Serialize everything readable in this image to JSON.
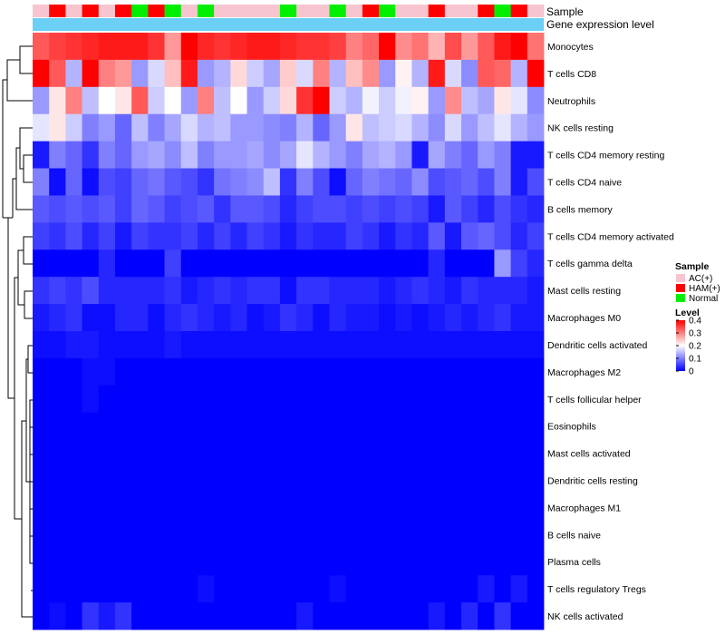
{
  "chart_data": {
    "type": "heatmap",
    "title": "",
    "annotation_tracks": [
      "Sample",
      "Gene expression level"
    ],
    "sample_groups": [
      "AC(+)",
      "HAM(+)",
      "AC(+)",
      "HAM(+)",
      "AC(+)",
      "HAM(+)",
      "Normal",
      "HAM(+)",
      "Normal",
      "AC(+)",
      "Normal",
      "AC(+)",
      "AC(+)",
      "AC(+)",
      "AC(+)",
      "Normal",
      "AC(+)",
      "AC(+)",
      "Normal",
      "AC(+)",
      "HAM(+)",
      "Normal",
      "AC(+)",
      "AC(+)",
      "HAM(+)",
      "AC(+)",
      "AC(+)",
      "HAM(+)",
      "Normal",
      "HAM(+)",
      "AC(+)"
    ],
    "rows": [
      "Monocytes",
      "T cells CD8",
      "Neutrophils",
      "NK cells resting",
      "T cells CD4 memory resting",
      "T cells CD4 naive",
      "B cells memory",
      "T cells CD4 memory activated",
      "T cells gamma delta",
      "Mast cells resting",
      "Macrophages M0",
      "Dendritic cells activated",
      "Macrophages M2",
      "T cells follicular helper",
      "Eosinophils",
      "Mast cells activated",
      "Dendritic cells resting",
      "Macrophages M1",
      "B cells naive",
      "Plasma cells",
      "T cells regulatory  Tregs",
      "NK cells activated"
    ],
    "values": [
      [
        0.33,
        0.35,
        0.36,
        0.37,
        0.38,
        0.38,
        0.38,
        0.36,
        0.28,
        0.4,
        0.37,
        0.36,
        0.37,
        0.38,
        0.38,
        0.37,
        0.36,
        0.36,
        0.35,
        0.3,
        0.32,
        0.4,
        0.29,
        0.31,
        0.26,
        0.34,
        0.28,
        0.33,
        0.38,
        0.4,
        0.31
      ],
      [
        0.4,
        0.33,
        0.14,
        0.4,
        0.3,
        0.28,
        0.12,
        0.17,
        0.25,
        0.38,
        0.12,
        0.14,
        0.23,
        0.16,
        0.13,
        0.24,
        0.17,
        0.3,
        0.14,
        0.25,
        0.29,
        0.12,
        0.21,
        0.14,
        0.38,
        0.17,
        0.11,
        0.33,
        0.32,
        0.14,
        0.4
      ],
      [
        0.12,
        0.22,
        0.3,
        0.15,
        0.2,
        0.22,
        0.33,
        0.16,
        0.2,
        0.12,
        0.3,
        0.15,
        0.2,
        0.12,
        0.16,
        0.23,
        0.36,
        0.4,
        0.16,
        0.14,
        0.19,
        0.16,
        0.19,
        0.21,
        0.12,
        0.29,
        0.15,
        0.13,
        0.22,
        0.18,
        0.11
      ],
      [
        0.18,
        0.22,
        0.16,
        0.1,
        0.12,
        0.08,
        0.15,
        0.1,
        0.13,
        0.17,
        0.14,
        0.15,
        0.12,
        0.12,
        0.11,
        0.1,
        0.14,
        0.08,
        0.12,
        0.22,
        0.15,
        0.16,
        0.17,
        0.14,
        0.11,
        0.17,
        0.12,
        0.15,
        0.18,
        0.14,
        0.12
      ],
      [
        0.02,
        0.1,
        0.08,
        0.04,
        0.1,
        0.08,
        0.12,
        0.13,
        0.11,
        0.15,
        0.1,
        0.12,
        0.12,
        0.13,
        0.11,
        0.13,
        0.18,
        0.14,
        0.12,
        0.1,
        0.13,
        0.14,
        0.12,
        0.02,
        0.13,
        0.1,
        0.08,
        0.12,
        0.1,
        0.02,
        0.02
      ],
      [
        0.1,
        0.01,
        0.08,
        0.01,
        0.06,
        0.05,
        0.08,
        0.09,
        0.07,
        0.06,
        0.04,
        0.09,
        0.1,
        0.11,
        0.15,
        0.04,
        0.1,
        0.06,
        0.01,
        0.08,
        0.1,
        0.09,
        0.08,
        0.11,
        0.06,
        0.07,
        0.08,
        0.06,
        0.1,
        0.02,
        0.06
      ],
      [
        0.07,
        0.06,
        0.07,
        0.06,
        0.07,
        0.05,
        0.08,
        0.07,
        0.05,
        0.06,
        0.07,
        0.04,
        0.07,
        0.07,
        0.06,
        0.03,
        0.05,
        0.06,
        0.06,
        0.05,
        0.06,
        0.05,
        0.06,
        0.05,
        0.02,
        0.07,
        0.05,
        0.03,
        0.06,
        0.04,
        0.03
      ],
      [
        0.05,
        0.04,
        0.06,
        0.03,
        0.05,
        0.02,
        0.05,
        0.04,
        0.04,
        0.05,
        0.03,
        0.05,
        0.03,
        0.05,
        0.04,
        0.02,
        0.04,
        0.03,
        0.03,
        0.05,
        0.04,
        0.02,
        0.04,
        0.03,
        0.07,
        0.02,
        0.07,
        0.08,
        0.06,
        0.03,
        0.05
      ],
      [
        0.0,
        0.0,
        0.0,
        0.0,
        0.03,
        0.0,
        0.0,
        0.0,
        0.05,
        0.0,
        0.0,
        0.0,
        0.0,
        0.0,
        0.0,
        0.0,
        0.0,
        0.0,
        0.0,
        0.0,
        0.0,
        0.0,
        0.0,
        0.0,
        0.03,
        0.0,
        0.0,
        0.0,
        0.12,
        0.05,
        0.03
      ],
      [
        0.04,
        0.05,
        0.04,
        0.06,
        0.03,
        0.03,
        0.03,
        0.03,
        0.04,
        0.02,
        0.03,
        0.04,
        0.03,
        0.04,
        0.04,
        0.01,
        0.04,
        0.04,
        0.03,
        0.03,
        0.03,
        0.02,
        0.03,
        0.04,
        0.03,
        0.02,
        0.04,
        0.03,
        0.03,
        0.03,
        0.02
      ],
      [
        0.02,
        0.03,
        0.04,
        0.01,
        0.01,
        0.03,
        0.03,
        0.01,
        0.03,
        0.04,
        0.03,
        0.02,
        0.03,
        0.01,
        0.02,
        0.04,
        0.03,
        0.01,
        0.03,
        0.02,
        0.02,
        0.01,
        0.02,
        0.01,
        0.02,
        0.03,
        0.02,
        0.03,
        0.04,
        0.02,
        0.02
      ],
      [
        0.01,
        0.01,
        0.02,
        0.02,
        0.01,
        0.01,
        0.01,
        0.01,
        0.02,
        0.01,
        0.01,
        0.01,
        0.01,
        0.01,
        0.01,
        0.01,
        0.01,
        0.01,
        0.01,
        0.01,
        0.01,
        0.01,
        0.01,
        0.01,
        0.01,
        0.01,
        0.01,
        0.01,
        0.01,
        0.01,
        0.01
      ],
      [
        0.0,
        0.0,
        0.0,
        0.01,
        0.01,
        0.0,
        0.0,
        0.0,
        0.0,
        0.0,
        0.0,
        0.0,
        0.0,
        0.0,
        0.0,
        0.0,
        0.0,
        0.0,
        0.0,
        0.0,
        0.0,
        0.0,
        0.0,
        0.0,
        0.0,
        0.0,
        0.0,
        0.0,
        0.0,
        0.0,
        0.0
      ],
      [
        0.0,
        0.0,
        0.0,
        0.01,
        0.0,
        0.0,
        0.0,
        0.0,
        0.0,
        0.0,
        0.0,
        0.0,
        0.0,
        0.0,
        0.0,
        0.0,
        0.0,
        0.0,
        0.0,
        0.0,
        0.0,
        0.0,
        0.0,
        0.0,
        0.0,
        0.0,
        0.0,
        0.0,
        0.0,
        0.0,
        0.0
      ],
      [
        0.0,
        0.0,
        0.0,
        0.0,
        0.0,
        0.0,
        0.0,
        0.0,
        0.0,
        0.0,
        0.0,
        0.0,
        0.0,
        0.0,
        0.0,
        0.0,
        0.0,
        0.0,
        0.0,
        0.0,
        0.0,
        0.0,
        0.0,
        0.0,
        0.0,
        0.0,
        0.0,
        0.0,
        0.0,
        0.0,
        0.0
      ],
      [
        0.0,
        0.0,
        0.0,
        0.0,
        0.0,
        0.0,
        0.0,
        0.0,
        0.0,
        0.0,
        0.0,
        0.0,
        0.0,
        0.0,
        0.0,
        0.0,
        0.0,
        0.0,
        0.0,
        0.0,
        0.0,
        0.0,
        0.0,
        0.0,
        0.0,
        0.0,
        0.0,
        0.0,
        0.0,
        0.0,
        0.0
      ],
      [
        0.0,
        0.0,
        0.0,
        0.0,
        0.0,
        0.0,
        0.0,
        0.0,
        0.0,
        0.0,
        0.0,
        0.0,
        0.0,
        0.0,
        0.0,
        0.0,
        0.0,
        0.0,
        0.0,
        0.0,
        0.0,
        0.0,
        0.0,
        0.0,
        0.0,
        0.0,
        0.0,
        0.0,
        0.0,
        0.0,
        0.0
      ],
      [
        0.0,
        0.0,
        0.0,
        0.0,
        0.0,
        0.0,
        0.0,
        0.0,
        0.0,
        0.0,
        0.0,
        0.0,
        0.0,
        0.0,
        0.0,
        0.0,
        0.0,
        0.0,
        0.0,
        0.0,
        0.0,
        0.0,
        0.0,
        0.0,
        0.0,
        0.0,
        0.0,
        0.0,
        0.0,
        0.0,
        0.0
      ],
      [
        0.0,
        0.0,
        0.0,
        0.0,
        0.0,
        0.0,
        0.0,
        0.0,
        0.0,
        0.0,
        0.0,
        0.0,
        0.0,
        0.0,
        0.0,
        0.0,
        0.0,
        0.0,
        0.0,
        0.0,
        0.0,
        0.0,
        0.0,
        0.0,
        0.0,
        0.0,
        0.0,
        0.0,
        0.0,
        0.0,
        0.0
      ],
      [
        0.0,
        0.0,
        0.0,
        0.0,
        0.0,
        0.0,
        0.0,
        0.0,
        0.0,
        0.0,
        0.0,
        0.0,
        0.0,
        0.0,
        0.0,
        0.0,
        0.0,
        0.0,
        0.0,
        0.0,
        0.0,
        0.0,
        0.0,
        0.0,
        0.0,
        0.0,
        0.0,
        0.0,
        0.0,
        0.0,
        0.0
      ],
      [
        0.0,
        0.0,
        0.0,
        0.0,
        0.0,
        0.0,
        0.0,
        0.0,
        0.0,
        0.0,
        0.01,
        0.0,
        0.0,
        0.0,
        0.0,
        0.0,
        0.0,
        0.0,
        0.01,
        0.0,
        0.0,
        0.0,
        0.0,
        0.0,
        0.0,
        0.0,
        0.0,
        0.02,
        0.0,
        0.02,
        0.0
      ],
      [
        0.0,
        0.01,
        0.0,
        0.04,
        0.02,
        0.04,
        0.0,
        0.0,
        0.0,
        0.0,
        0.0,
        0.0,
        0.0,
        0.0,
        0.0,
        0.0,
        0.02,
        0.0,
        0.0,
        0.0,
        0.0,
        0.0,
        0.0,
        0.0,
        0.02,
        0.0,
        0.03,
        0.0,
        0.04,
        0.0,
        0.0
      ]
    ],
    "color_scale": {
      "min": 0,
      "mid": 0.2,
      "max": 0.4,
      "low_color": "#0000ff",
      "mid_color": "#ffffff",
      "high_color": "#ff0000"
    },
    "expression_track_color": "#6ccff6",
    "legends": {
      "sample": {
        "title": "Sample",
        "entries": [
          {
            "label": "AC(+)",
            "color": "#f7c5cf"
          },
          {
            "label": "HAM(+)",
            "color": "#ff0000"
          },
          {
            "label": "Normal",
            "color": "#00ee00"
          }
        ]
      },
      "level": {
        "title": "Level",
        "ticks": [
          "0.4",
          "0.3",
          "0.2",
          "0.1",
          "0"
        ],
        "tick_values": [
          0.4,
          0.3,
          0.2,
          0.1,
          0
        ]
      }
    },
    "dendrogram": "row clustering tree (left side)"
  }
}
